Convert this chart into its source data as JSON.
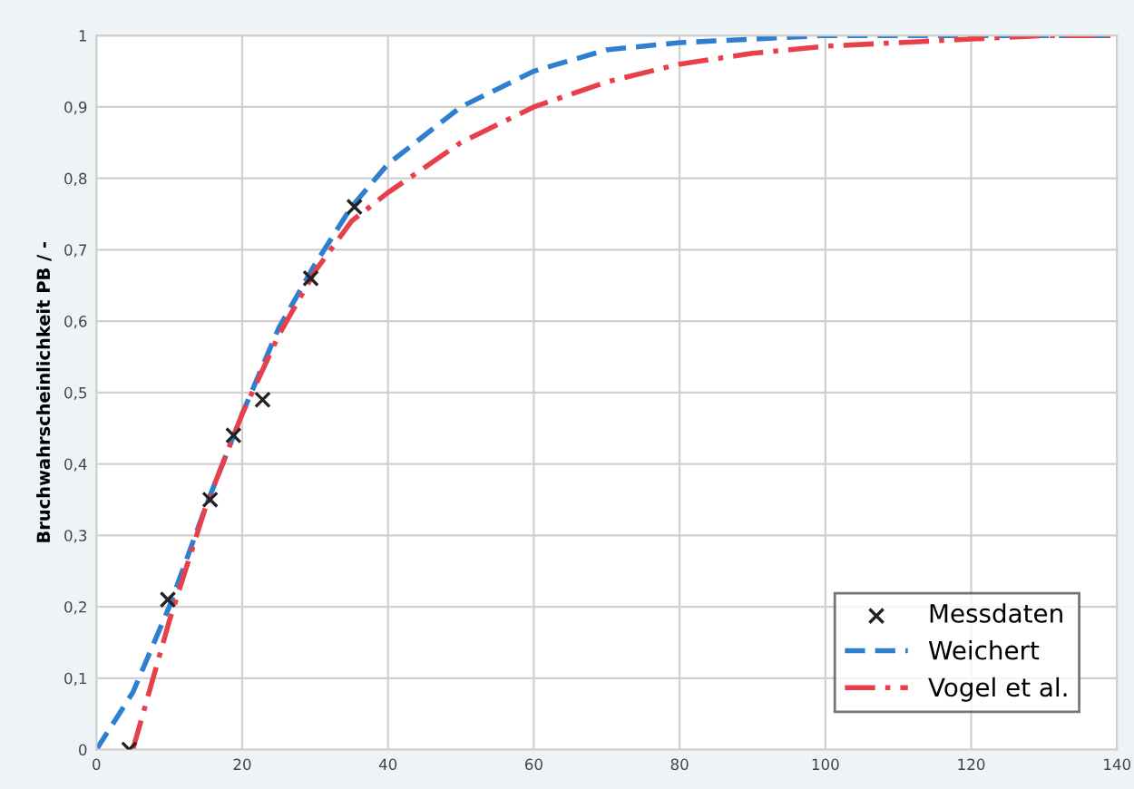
{
  "chart_data": {
    "type": "line",
    "ylabel": "Bruchwahrscheinlichkeit PB / -",
    "xlim": [
      0,
      140
    ],
    "xticks": [
      0,
      20,
      40,
      60,
      80,
      100,
      120,
      140
    ],
    "ylim": [
      0,
      1
    ],
    "yticks": [
      0,
      {
        "value": 0.1,
        "label": "0,1"
      },
      {
        "value": 0.2,
        "label": "0,2"
      },
      {
        "value": 0.3,
        "label": "0,3"
      },
      {
        "value": 0.4,
        "label": "0,4"
      },
      {
        "value": 0.5,
        "label": "0,5"
      },
      {
        "value": 0.6,
        "label": "0,6"
      },
      {
        "value": 0.7,
        "label": "0,7"
      },
      {
        "value": 0.8,
        "label": "0,8"
      },
      {
        "value": 0.9,
        "label": "0,9"
      },
      1
    ],
    "grid": true,
    "legend": "bottom right",
    "series": [
      {
        "name": "Messdaten",
        "type": "scatter",
        "marker": "cross",
        "color": "#222222",
        "x": [
          4.5,
          9.8,
          15.6,
          18.8,
          22.8,
          29.4,
          35.4
        ],
        "values": [
          0,
          0.21,
          0.35,
          0.44,
          0.49,
          0.66,
          0.76
        ]
      },
      {
        "name": "Weichert",
        "line_style": "dashed",
        "color": "#2e7fd0",
        "x": [
          0,
          5,
          10,
          15,
          20,
          25,
          30,
          35,
          40,
          50,
          60,
          70,
          80,
          90,
          100,
          110,
          120,
          130,
          140
        ],
        "values": [
          0,
          0.08,
          0.2,
          0.34,
          0.47,
          0.59,
          0.68,
          0.76,
          0.82,
          0.9,
          0.95,
          0.98,
          0.99,
          0.995,
          1,
          1,
          1,
          1,
          1
        ]
      },
      {
        "name": "Vogel et al.",
        "line_style": "dashdot",
        "color": "#e8404a",
        "x": [
          5,
          10,
          15,
          20,
          25,
          30,
          35,
          40,
          50,
          60,
          70,
          80,
          90,
          100,
          110,
          120,
          130,
          140
        ],
        "values": [
          0,
          0.18,
          0.34,
          0.47,
          0.58,
          0.67,
          0.74,
          0.78,
          0.85,
          0.9,
          0.935,
          0.96,
          0.975,
          0.985,
          0.99,
          0.995,
          1,
          1
        ]
      }
    ]
  }
}
